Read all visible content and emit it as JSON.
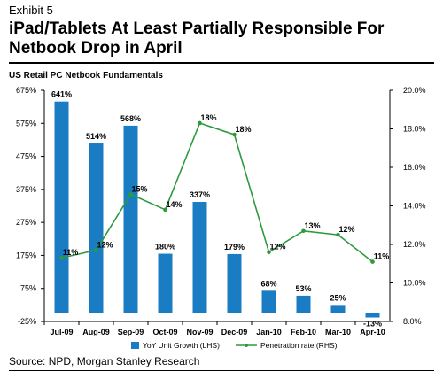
{
  "header": {
    "exhibit": "Exhibit 5",
    "title": "iPad/Tablets At Least Partially Responsible For Netbook Drop in April",
    "subtitle": "US Retail PC Netbook Fundamentals"
  },
  "footer": {
    "source": "Source: NPD, Morgan Stanley Research"
  },
  "colors": {
    "bar": "#1a7dc4",
    "line": "#2e9a3e"
  },
  "chart_data": {
    "type": "bar",
    "categories": [
      "Jul-09",
      "Aug-09",
      "Sep-09",
      "Oct-09",
      "Nov-09",
      "Dec-09",
      "Jan-10",
      "Feb-10",
      "Mar-10",
      "Apr-10"
    ],
    "series": [
      {
        "name": "YoY Unit Growth (LHS)",
        "type": "bar",
        "axis": "left",
        "values": [
          641,
          514,
          568,
          180,
          337,
          179,
          68,
          53,
          25,
          -13
        ],
        "labels": [
          "641%",
          "514%",
          "568%",
          "180%",
          "337%",
          "179%",
          "68%",
          "53%",
          "25%",
          "-13%"
        ]
      },
      {
        "name": "Penetration rate (RHS)",
        "type": "line",
        "axis": "right",
        "values": [
          11.3,
          11.7,
          14.6,
          13.8,
          18.3,
          17.7,
          11.6,
          12.7,
          12.5,
          11.1
        ],
        "labels": [
          "11%",
          "12%",
          "15%",
          "14%",
          "18%",
          "18%",
          "12%",
          "13%",
          "12%",
          "11%"
        ]
      }
    ],
    "y_left": {
      "range": [
        -25,
        675
      ],
      "ticks": [
        "-25%",
        "75%",
        "175%",
        "275%",
        "375%",
        "475%",
        "575%",
        "675%"
      ]
    },
    "y_right": {
      "range": [
        8,
        20
      ],
      "ticks": [
        "8.0%",
        "10.0%",
        "12.0%",
        "14.0%",
        "16.0%",
        "18.0%",
        "20.0%"
      ]
    },
    "grid": false,
    "legend_position": "bottom"
  }
}
